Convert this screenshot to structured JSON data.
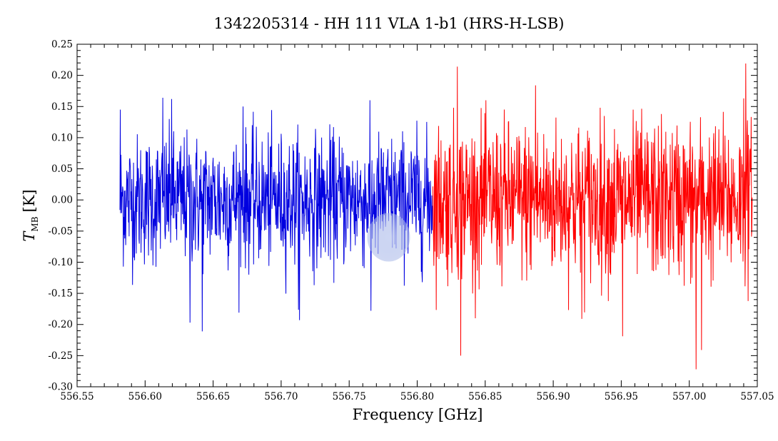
{
  "chart_data": {
    "type": "line",
    "title": "1342205314 - HH 111 VLA 1-b1 (HRS-H-LSB)",
    "xlabel": "Frequency [GHz]",
    "ylabel_main": "T",
    "ylabel_sub": "MB",
    "ylabel_unit": "[K]",
    "xlim": [
      556.55,
      557.05
    ],
    "ylim": [
      -0.3,
      0.25
    ],
    "xticks": [
      "556.55",
      "556.60",
      "556.65",
      "556.70",
      "556.75",
      "556.80",
      "556.85",
      "556.90",
      "556.95",
      "557.00",
      "557.05"
    ],
    "yticks": [
      "0.25",
      "0.20",
      "0.15",
      "0.10",
      "0.05",
      "0.00",
      "-0.05",
      "-0.10",
      "-0.15",
      "-0.20",
      "-0.25",
      "-0.30"
    ],
    "grid": false,
    "legend": "none",
    "colors": {
      "blue": "#0000e0",
      "red": "#ff0000",
      "axis": "#000000",
      "blob": "#a9b8e8"
    },
    "blob": {
      "x": 556.779,
      "y": -0.06
    },
    "series": [
      {
        "color": "blue",
        "x_start": 556.5815,
        "x_step": 0.00025,
        "count": 920,
        "rms": 0.052,
        "spikes": [
          {
            "x": 556.5818,
            "y": 0.145
          },
          {
            "x": 556.613,
            "y": 0.164
          },
          {
            "x": 556.6195,
            "y": 0.162
          },
          {
            "x": 556.633,
            "y": -0.197
          },
          {
            "x": 556.642,
            "y": -0.211
          },
          {
            "x": 556.672,
            "y": 0.15
          },
          {
            "x": 556.7135,
            "y": -0.193
          },
          {
            "x": 556.766,
            "y": -0.178
          }
        ]
      },
      {
        "color": "red",
        "x_start": 556.8115,
        "x_step": 0.00025,
        "count": 940,
        "rms": 0.062,
        "spikes": [
          {
            "x": 556.8295,
            "y": 0.214
          },
          {
            "x": 556.832,
            "y": -0.25
          },
          {
            "x": 556.887,
            "y": 0.184
          },
          {
            "x": 556.921,
            "y": -0.191
          },
          {
            "x": 556.951,
            "y": -0.219
          },
          {
            "x": 557.005,
            "y": -0.272
          },
          {
            "x": 557.009,
            "y": -0.241
          },
          {
            "x": 557.0415,
            "y": 0.219
          },
          {
            "x": 557.04,
            "y": 0.163
          }
        ]
      }
    ]
  }
}
